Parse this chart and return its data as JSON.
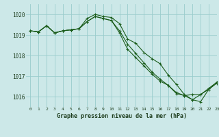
{
  "background_color": "#cce8e8",
  "grid_color": "#99cccc",
  "line_color": "#1a5c1a",
  "title": "Graphe pression niveau de la mer (hPa)",
  "xlim": [
    -0.5,
    23
  ],
  "ylim": [
    1015.5,
    1020.5
  ],
  "yticks": [
    1016,
    1017,
    1018,
    1019,
    1020
  ],
  "xticks": [
    0,
    1,
    2,
    3,
    4,
    5,
    6,
    7,
    8,
    9,
    10,
    11,
    12,
    13,
    14,
    15,
    16,
    17,
    18,
    19,
    20,
    21,
    22,
    23
  ],
  "line1_x": [
    0,
    1,
    2,
    3,
    4,
    5,
    6,
    7,
    8,
    9,
    10,
    11,
    12,
    13,
    14,
    15,
    16,
    17,
    18,
    19,
    20,
    21,
    22,
    23
  ],
  "line1_y": [
    1019.2,
    1019.15,
    1019.45,
    1019.1,
    1019.2,
    1019.25,
    1019.3,
    1019.8,
    1020.0,
    1019.9,
    1019.85,
    1019.55,
    1018.8,
    1018.6,
    1018.15,
    1017.85,
    1017.6,
    1017.05,
    1016.6,
    1016.1,
    1015.85,
    1016.1,
    1016.4,
    1016.7
  ],
  "line2_x": [
    0,
    1,
    2,
    3,
    4,
    5,
    6,
    7,
    8,
    9,
    10,
    11,
    12,
    13,
    14,
    15,
    16,
    17,
    18,
    19,
    20,
    21,
    22,
    23
  ],
  "line2_y": [
    1019.2,
    1019.15,
    1019.45,
    1019.1,
    1019.2,
    1019.25,
    1019.3,
    1019.65,
    1019.9,
    1019.8,
    1019.7,
    1019.1,
    1018.3,
    1017.9,
    1017.5,
    1017.1,
    1016.75,
    1016.55,
    1016.15,
    1016.05,
    1015.85,
    1015.75,
    1016.35,
    1016.7
  ],
  "line3_x": [
    0,
    1,
    2,
    3,
    4,
    5,
    6,
    7,
    8,
    9,
    10,
    11,
    12,
    13,
    14,
    15,
    16,
    17,
    18,
    19,
    20,
    21,
    22,
    23
  ],
  "line3_y": [
    1019.2,
    1019.15,
    1019.45,
    1019.1,
    1019.2,
    1019.25,
    1019.3,
    1019.65,
    1019.9,
    1019.8,
    1019.7,
    1019.2,
    1018.55,
    1018.1,
    1017.65,
    1017.2,
    1016.85,
    1016.55,
    1016.2,
    1016.05,
    1016.1,
    1016.1,
    1016.35,
    1016.65
  ]
}
